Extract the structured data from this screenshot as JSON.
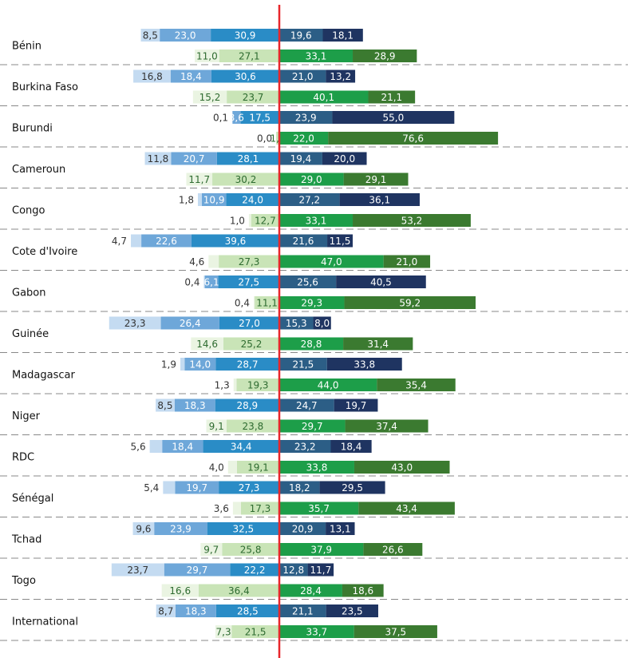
{
  "chart_data": {
    "type": "diverging-bar",
    "categories": [
      "Bénin",
      "Burkina Faso",
      "Burundi",
      "Cameroun",
      "Congo",
      "Cote d'Ivoire",
      "Gabon",
      "Guinée",
      "Madagascar",
      "Niger",
      "RDC",
      "Sénégal",
      "Tchad",
      "Togo",
      "International"
    ],
    "series": [
      {
        "row": 0,
        "side": "left",
        "color": "#2a8cc6",
        "values": [
          30.9,
          30.6,
          17.5,
          28.1,
          24.0,
          39.6,
          27.5,
          27.0,
          28.7,
          28.9,
          34.4,
          27.3,
          32.5,
          22.2,
          28.5
        ],
        "value_labels": [
          "30,9",
          "30,6",
          "17,5",
          "28,1",
          "24,0",
          "39,6",
          "27,5",
          "27,0",
          "28,7",
          "28,9",
          "34,4",
          "27,3",
          "32,5",
          "22,2",
          "28,5"
        ]
      },
      {
        "row": 0,
        "side": "left",
        "color": "#6ea7d9",
        "values": [
          23.0,
          18.4,
          3.6,
          20.7,
          10.9,
          22.6,
          6.1,
          26.4,
          14.0,
          18.3,
          18.4,
          19.7,
          23.9,
          29.7,
          18.3
        ],
        "value_labels": [
          "23,0",
          "18,4",
          "3,6",
          "20,7",
          "10,9",
          "22,6",
          "6,1",
          "26,4",
          "14,0",
          "18,3",
          "18,4",
          "19,7",
          "23,9",
          "29,7",
          "18,3"
        ]
      },
      {
        "row": 0,
        "side": "left",
        "color": "#c4dbf1",
        "values": [
          8.5,
          16.8,
          0.1,
          11.8,
          1.8,
          4.7,
          0.4,
          23.3,
          1.9,
          8.5,
          5.6,
          5.4,
          9.6,
          23.7,
          8.7
        ],
        "value_labels": [
          "8,5",
          "16,8",
          "0,1",
          "11,8",
          "1,8",
          "4,7",
          "0,4",
          "23,3",
          "1,9",
          "8,5",
          "5,6",
          "5,4",
          "9,6",
          "23,7",
          "8,7"
        ]
      },
      {
        "row": 0,
        "side": "right",
        "color": "#2c5e86",
        "values": [
          19.6,
          21.0,
          23.9,
          19.4,
          27.2,
          21.6,
          25.6,
          15.3,
          21.5,
          24.7,
          23.2,
          18.2,
          20.9,
          12.8,
          21.1
        ],
        "value_labels": [
          "19,6",
          "21,0",
          "23,9",
          "19,4",
          "27,2",
          "21,6",
          "25,6",
          "15,3",
          "21,5",
          "24,7",
          "23,2",
          "18,2",
          "20,9",
          "12,8",
          "21,1"
        ]
      },
      {
        "row": 0,
        "side": "right",
        "color": "#1f3461",
        "values": [
          18.1,
          13.2,
          55.0,
          20.0,
          36.1,
          11.5,
          40.5,
          8.0,
          33.8,
          19.7,
          18.4,
          29.5,
          13.1,
          11.7,
          23.5
        ],
        "value_labels": [
          "18,1",
          "13,2",
          "55,0",
          "20,0",
          "36,1",
          "11,5",
          "40,5",
          "8,0",
          "33,8",
          "19,7",
          "18,4",
          "29,5",
          "13,1",
          "11,7",
          "23,5"
        ]
      },
      {
        "row": 1,
        "side": "left",
        "color": "#c9e4b7",
        "values": [
          27.1,
          23.7,
          1.4,
          30.2,
          12.7,
          27.3,
          11.1,
          25.2,
          19.3,
          23.8,
          19.1,
          17.3,
          25.8,
          36.4,
          21.5
        ],
        "value_labels": [
          "27,1",
          "23,7",
          "1,4",
          "30,2",
          "12,7",
          "27,3",
          "11,1",
          "25,2",
          "19,3",
          "23,8",
          "19,1",
          "17,3",
          "25,8",
          "36,4",
          "21,5"
        ]
      },
      {
        "row": 1,
        "side": "left",
        "color": "#eaf4e2",
        "values": [
          11.0,
          15.2,
          0.0,
          11.7,
          1.0,
          4.6,
          0.4,
          14.6,
          1.3,
          9.1,
          4.0,
          3.6,
          9.7,
          16.6,
          7.3
        ],
        "value_labels": [
          "11,0",
          "15,2",
          "0,0",
          "11,7",
          "1,0",
          "4,6",
          "0,4",
          "14,6",
          "1,3",
          "9,1",
          "4,0",
          "3,6",
          "9,7",
          "16,6",
          "7,3"
        ]
      },
      {
        "row": 1,
        "side": "right",
        "color": "#1d9e49",
        "values": [
          33.1,
          40.1,
          22.0,
          29.0,
          33.1,
          47.0,
          29.3,
          28.8,
          44.0,
          29.7,
          33.8,
          35.7,
          37.9,
          28.4,
          33.7
        ],
        "value_labels": [
          "33,1",
          "40,1",
          "22,0",
          "29,0",
          "33,1",
          "47,0",
          "29,3",
          "28,8",
          "44,0",
          "29,7",
          "33,8",
          "35,7",
          "37,9",
          "28,4",
          "33,7"
        ]
      },
      {
        "row": 1,
        "side": "right",
        "color": "#3b7a30",
        "values": [
          28.9,
          21.1,
          76.6,
          29.1,
          53.2,
          21.0,
          59.2,
          31.4,
          35.4,
          37.4,
          43.0,
          43.4,
          26.6,
          18.6,
          37.5
        ],
        "value_labels": [
          "28,9",
          "21,1",
          "76,6",
          "29,1",
          "53,2",
          "21,0",
          "59,2",
          "31,4",
          "35,4",
          "37,4",
          "43,0",
          "43,4",
          "26,6",
          "18,6",
          "37,5"
        ]
      }
    ]
  }
}
